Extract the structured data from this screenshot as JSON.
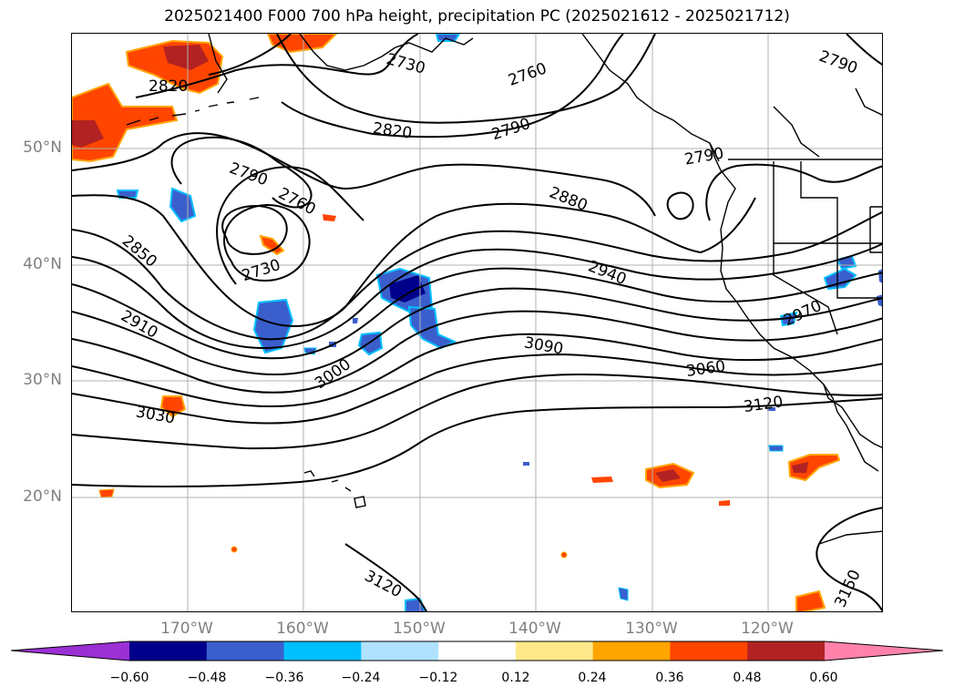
{
  "title": "2025021400 F000 700 hPa height, precipitation PC (2025021612 - 2025021712)",
  "lat_labels": [
    "50°N",
    "40°N",
    "30°N",
    "20°N"
  ],
  "lon_labels": [
    "170°W",
    "160°W",
    "150°W",
    "140°W",
    "130°W",
    "120°W"
  ],
  "contour_labels": [
    "2730",
    "2760",
    "2790",
    "2820",
    "2820",
    "2790",
    "2760",
    "2790",
    "2730",
    "2850",
    "2880",
    "2910",
    "2940",
    "2970",
    "3000",
    "3030",
    "3060",
    "3090",
    "3120",
    "3120",
    "3150",
    "2790"
  ],
  "colorbar": {
    "ticks": [
      "−0.60",
      "−0.48",
      "−0.36",
      "−0.24",
      "−0.12",
      "0.12",
      "0.24",
      "0.36",
      "0.48",
      "0.60"
    ],
    "colors": [
      "#9b30d4",
      "#00008b",
      "#3a5fcd",
      "#00bfff",
      "#b0e2ff",
      "#ffffff",
      "#ffe98a",
      "#ffa500",
      "#ff4500",
      "#b22222",
      "#ff82ab"
    ]
  },
  "colors": {
    "grid": "#b0b0b0",
    "contour": "#000000",
    "coast": "#000000"
  }
}
